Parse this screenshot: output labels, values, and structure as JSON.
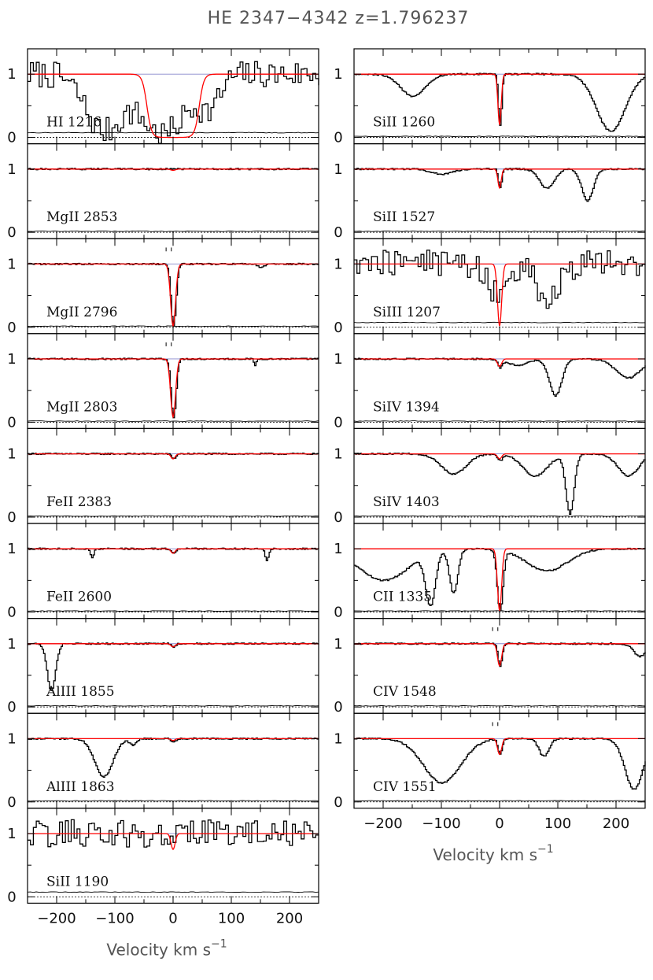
{
  "title": "HE 2347−4342   z=1.796237",
  "chart_data": {
    "type": "line",
    "title": "HE 2347−4342   z=1.796237",
    "redshift": 1.796237,
    "xlabel": "Velocity km s",
    "xlabel_superscript": "−1",
    "xlim": [
      -250,
      250
    ],
    "ylim": [
      -0.1,
      1.4
    ],
    "xticks": [
      -200,
      -100,
      0,
      100,
      200
    ],
    "yticks": [
      0,
      1
    ],
    "series_colors": {
      "spectrum": "#000000",
      "model_fit": "#ff0000",
      "continuum": "#8888cc"
    },
    "component_marks_velocity": [
      -12,
      -3
    ],
    "panels": [
      {
        "label": "HI  1216",
        "column": 1,
        "noisy": true,
        "absorption": [
          {
            "v": -120,
            "depth": 0.9,
            "width": 45
          },
          {
            "v": -20,
            "depth": 0.95,
            "width": 60
          },
          {
            "v": 60,
            "depth": 0.5,
            "width": 25
          }
        ],
        "model": {
          "type": "lyman-alpha",
          "v_lo": -45,
          "v_hi": 45,
          "edge_width": 12
        }
      },
      {
        "label": "MgII  2853",
        "column": 1,
        "absorption": [],
        "model": {
          "v": 0,
          "depth": 0.02,
          "width": 6
        }
      },
      {
        "label": "MgII  2796",
        "column": 1,
        "marks": true,
        "absorption": [
          {
            "v": 0,
            "depth": 0.98,
            "width": 6
          },
          {
            "v": 150,
            "depth": 0.05,
            "width": 8
          }
        ],
        "model": {
          "v": 0,
          "depth": 0.98,
          "width": 6
        }
      },
      {
        "label": "MgII  2803",
        "column": 1,
        "marks": true,
        "absorption": [
          {
            "v": 0,
            "depth": 0.92,
            "width": 6
          },
          {
            "v": 140,
            "depth": 0.1,
            "width": 3
          }
        ],
        "model": {
          "v": 0,
          "depth": 0.92,
          "width": 6
        }
      },
      {
        "label": "FeII  2383",
        "column": 1,
        "absorption": [
          {
            "v": 0,
            "depth": 0.08,
            "width": 5
          }
        ],
        "model": {
          "v": 0,
          "depth": 0.08,
          "width": 5
        }
      },
      {
        "label": "FeII  2600",
        "column": 1,
        "absorption": [
          {
            "v": 0,
            "depth": 0.07,
            "width": 5
          },
          {
            "v": -140,
            "depth": 0.15,
            "width": 4
          },
          {
            "v": 160,
            "depth": 0.2,
            "width": 4
          }
        ],
        "model": {
          "v": 0,
          "depth": 0.07,
          "width": 5
        }
      },
      {
        "label": "AlIII  1855",
        "column": 1,
        "absorption": [
          {
            "v": -210,
            "depth": 0.75,
            "width": 10
          },
          {
            "v": 0,
            "depth": 0.05,
            "width": 5
          }
        ],
        "model": {
          "v": 0,
          "depth": 0.05,
          "width": 5
        }
      },
      {
        "label": "AlIII  1863",
        "column": 1,
        "absorption": [
          {
            "v": -120,
            "depth": 0.6,
            "width": 22
          },
          {
            "v": -70,
            "depth": 0.1,
            "width": 8
          },
          {
            "v": 0,
            "depth": 0.06,
            "width": 5
          }
        ],
        "model": {
          "v": 0,
          "depth": 0.03,
          "width": 5
        }
      },
      {
        "label": "SiII  1190",
        "column": 1,
        "noisy": true,
        "absorption": [
          {
            "v": 0,
            "depth": 0.25,
            "width": 5
          }
        ],
        "model": {
          "v": 0,
          "depth": 0.25,
          "width": 5
        }
      },
      {
        "label": "SiII  1260",
        "column": 2,
        "absorption": [
          {
            "v": -150,
            "depth": 0.35,
            "width": 30
          },
          {
            "v": 0,
            "depth": 0.8,
            "width": 4
          },
          {
            "v": 190,
            "depth": 0.9,
            "width": 35
          }
        ],
        "model": {
          "v": 0,
          "depth": 0.8,
          "width": 4
        }
      },
      {
        "label": "SiII  1527",
        "column": 2,
        "absorption": [
          {
            "v": -100,
            "depth": 0.08,
            "width": 25
          },
          {
            "v": 0,
            "depth": 0.3,
            "width": 4
          },
          {
            "v": 80,
            "depth": 0.3,
            "width": 18
          },
          {
            "v": 150,
            "depth": 0.5,
            "width": 14
          }
        ],
        "model": {
          "v": 0,
          "depth": 0.3,
          "width": 4
        }
      },
      {
        "label": "SiIII  1207",
        "column": 2,
        "noisy": true,
        "absorption": [
          {
            "v": 0,
            "depth": 0.5,
            "width": 30
          },
          {
            "v": 80,
            "depth": 0.6,
            "width": 25
          }
        ],
        "model": {
          "v": 0,
          "depth": 0.98,
          "width": 5
        }
      },
      {
        "label": "SiIV  1394",
        "column": 2,
        "absorption": [
          {
            "v": 0,
            "depth": 0.12,
            "width": 5
          },
          {
            "v": 30,
            "depth": 0.1,
            "width": 25
          },
          {
            "v": 95,
            "depth": 0.58,
            "width": 15
          },
          {
            "v": 220,
            "depth": 0.3,
            "width": 30
          }
        ],
        "model": {
          "v": 0,
          "depth": 0.12,
          "width": 5
        }
      },
      {
        "label": "SiIV  1403",
        "column": 2,
        "absorption": [
          {
            "v": -80,
            "depth": 0.32,
            "width": 30
          },
          {
            "v": 0,
            "depth": 0.1,
            "width": 6
          },
          {
            "v": 60,
            "depth": 0.35,
            "width": 30
          },
          {
            "v": 120,
            "depth": 0.95,
            "width": 10
          },
          {
            "v": 220,
            "depth": 0.35,
            "width": 25
          }
        ],
        "model": {
          "v": 0,
          "depth": 0.08,
          "width": 5
        }
      },
      {
        "label": "CII  1335",
        "column": 2,
        "absorption": [
          {
            "v": -200,
            "depth": 0.5,
            "width": 60
          },
          {
            "v": -120,
            "depth": 0.9,
            "width": 12
          },
          {
            "v": -80,
            "depth": 0.7,
            "width": 10
          },
          {
            "v": 0,
            "depth": 0.98,
            "width": 7
          },
          {
            "v": 80,
            "depth": 0.35,
            "width": 50
          }
        ],
        "model": {
          "v": 0,
          "depth": 0.98,
          "width": 5
        }
      },
      {
        "label": "CIV  1548",
        "column": 2,
        "marks": true,
        "absorption": [
          {
            "v": 0,
            "depth": 0.35,
            "width": 5
          },
          {
            "v": 240,
            "depth": 0.2,
            "width": 15
          }
        ],
        "model": {
          "v": 0,
          "depth": 0.35,
          "width": 5
        }
      },
      {
        "label": "CIV  1551",
        "column": 2,
        "marks": true,
        "absorption": [
          {
            "v": -100,
            "depth": 0.7,
            "width": 45
          },
          {
            "v": 0,
            "depth": 0.25,
            "width": 5
          },
          {
            "v": 75,
            "depth": 0.28,
            "width": 12
          },
          {
            "v": 230,
            "depth": 0.8,
            "width": 22
          }
        ],
        "model": {
          "v": 0,
          "depth": 0.25,
          "width": 5
        }
      }
    ]
  }
}
